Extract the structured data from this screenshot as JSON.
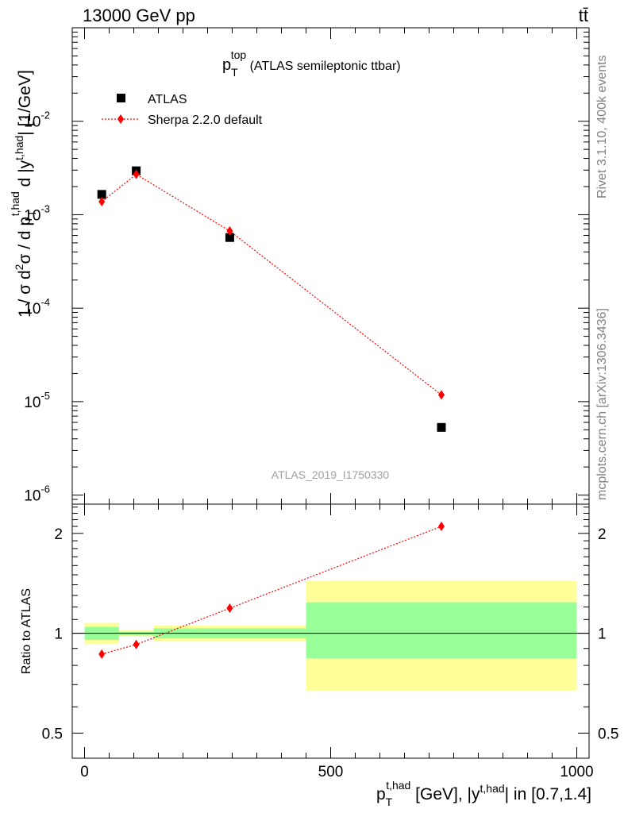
{
  "header": {
    "left": "13000 GeV pp",
    "right": "tt̄"
  },
  "side_labels": {
    "rivet": "Rivet 3.1.10,  400k events",
    "mcplots": "mcplots.cern.ch [arXiv:1306.3436]"
  },
  "watermark": "ATLAS_2019_I1750330",
  "chart_data": [
    {
      "type": "scatter",
      "title": {
        "main": "p",
        "sup": "top",
        "sub": "T",
        "rest": " (ATLAS semileptonic ttbar)"
      },
      "ylabel": "1 / σ d²σ / d p_T^{t,had} d |y^{t,had}| [1/GeV]",
      "yscale": "log",
      "ylim": [
        8e-07,
        0.1
      ],
      "xlim": [
        -25,
        1025
      ],
      "ytick_labels": [
        {
          "value": 0.01,
          "base": "10",
          "exp": "-2"
        },
        {
          "value": 0.001,
          "base": "10",
          "exp": "-3"
        },
        {
          "value": 0.0001,
          "base": "10",
          "exp": "-4"
        },
        {
          "value": 1e-05,
          "base": "10",
          "exp": "-5"
        },
        {
          "value": 1e-06,
          "base": "10",
          "exp": "-6"
        }
      ],
      "legend": {
        "position": "top-left",
        "entries": [
          {
            "label": "ATLAS",
            "marker": "square",
            "color": "#000000"
          },
          {
            "label": "Sherpa 2.2.0 default",
            "marker": "diamond",
            "color": "#ff0000"
          }
        ]
      },
      "series": [
        {
          "name": "ATLAS",
          "color": "#000000",
          "x": [
            35,
            105,
            295,
            725
          ],
          "y": [
            0.00165,
            0.00295,
            0.00057,
            5.3e-06
          ],
          "bins": [
            [
              0,
              70
            ],
            [
              70,
              140
            ],
            [
              140,
              450
            ],
            [
              450,
              1000
            ]
          ]
        },
        {
          "name": "Sherpa 2.2.0 default",
          "color": "#ff0000",
          "x": [
            35,
            105,
            295,
            725
          ],
          "y": [
            0.00138,
            0.0027,
            0.00067,
            1.18e-05
          ]
        }
      ]
    },
    {
      "type": "scatter",
      "ylabel": "Ratio to ATLAS",
      "xlabel": "p_T^{t,had} [GeV], |y^{t,had}| in [0.7,1.4]",
      "yscale": "log",
      "ylim": [
        0.42,
        2.45
      ],
      "xlim": [
        -25,
        1025
      ],
      "xtick_labels": [
        "0",
        "500",
        "1000"
      ],
      "ytick_labels": [
        "0.5",
        "1",
        "2"
      ],
      "reference_line": 1,
      "band_colors": {
        "inner": "#99ff99",
        "outer": "#ffff99"
      },
      "bands": [
        {
          "x0": 0,
          "x1": 70,
          "inner": [
            0.955,
            1.045
          ],
          "outer": [
            0.93,
            1.075
          ]
        },
        {
          "x0": 70,
          "x1": 140,
          "inner": [
            0.985,
            1.01
          ],
          "outer": [
            0.98,
            1.02
          ]
        },
        {
          "x0": 140,
          "x1": 450,
          "inner": [
            0.965,
            1.035
          ],
          "outer": [
            0.945,
            1.055
          ]
        },
        {
          "x0": 450,
          "x1": 1000,
          "inner": [
            0.84,
            1.24
          ],
          "outer": [
            0.67,
            1.44
          ]
        }
      ],
      "series": [
        {
          "name": "Sherpa 2.2.0 default",
          "color": "#ff0000",
          "x": [
            35,
            105,
            295,
            725
          ],
          "y": [
            0.865,
            0.925,
            1.19,
            2.1
          ],
          "yerr": [
            0.005,
            0.006,
            0.015,
            0.06
          ]
        }
      ]
    }
  ]
}
